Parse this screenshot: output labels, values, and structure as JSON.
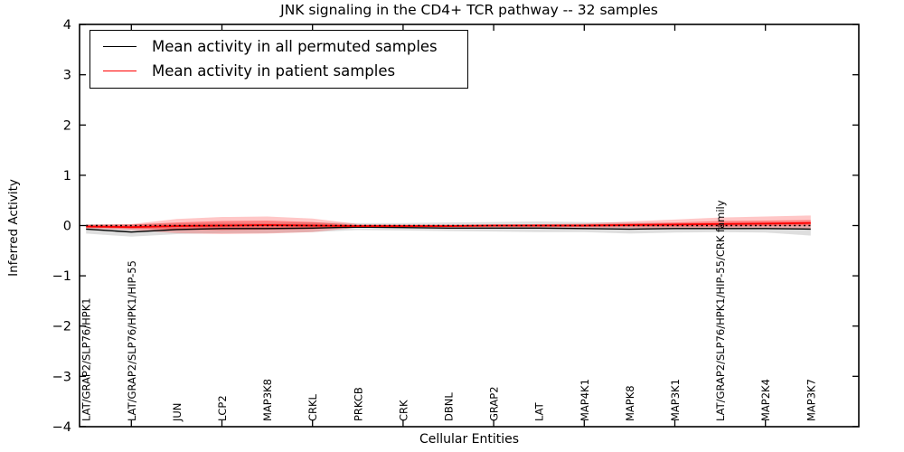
{
  "title": "JNK signaling in the CD4+ TCR pathway -- 32 samples",
  "legend": {
    "items": [
      {
        "label": "Mean activity in all permuted samples",
        "color": "#000000"
      },
      {
        "label": "Mean activity in patient samples",
        "color": "#ff0000"
      }
    ]
  },
  "axes": {
    "ylabel": "Inferred Activity",
    "xlabel": "Cellular Entities",
    "ylim": [
      -4,
      4
    ],
    "yticks": [
      4,
      3,
      2,
      1,
      0,
      -1,
      -2,
      -3,
      -4
    ],
    "ytick_labels": [
      "4",
      "3",
      "2",
      "1",
      "0",
      "−1",
      "−2",
      "−3",
      "−4"
    ]
  },
  "chart_data": {
    "type": "line",
    "title": "JNK signaling in the CD4+ TCR pathway -- 32 samples",
    "xlabel": "Cellular Entities",
    "ylabel": "Inferred Activity",
    "ylim": [
      -4,
      4
    ],
    "grid": false,
    "legend_position": "upper left",
    "categories": [
      "LAT/GRAP2/SLP76/HPK1",
      "LAT/GRAP2/SLP76/HPK1/HIP-55",
      "JUN",
      "LCP2",
      "MAP3K8",
      "CRKL",
      "PRKCB",
      "CRK",
      "DBNL",
      "GRAP2",
      "LAT",
      "MAP4K1",
      "MAPK8",
      "MAP3K1",
      "LAT/GRAP2/SLP76/HPK1/HIP-55/CRK family",
      "MAP2K4",
      "MAP3K7"
    ],
    "x_tick_indices": [
      1,
      3,
      5,
      7,
      9,
      11,
      13,
      15
    ],
    "series": [
      {
        "name": "Mean activity in all permuted samples",
        "color": "#000000",
        "style": "solid",
        "values": [
          -0.07,
          -0.13,
          -0.08,
          -0.06,
          -0.06,
          -0.05,
          -0.03,
          -0.04,
          -0.05,
          -0.05,
          -0.05,
          -0.06,
          -0.07,
          -0.06,
          -0.06,
          -0.06,
          -0.07
        ]
      },
      {
        "name": "Mean activity in patient samples",
        "color": "#ff0000",
        "style": "solid",
        "values": [
          -0.02,
          -0.03,
          -0.01,
          0.0,
          0.01,
          0.0,
          -0.01,
          -0.01,
          -0.01,
          0.0,
          0.0,
          0.0,
          0.01,
          0.02,
          0.03,
          0.04,
          0.05
        ]
      },
      {
        "name": "zero reference",
        "color": "#000000",
        "style": "dotted",
        "y": 0
      }
    ],
    "bands": [
      {
        "name": "permuted samples range",
        "fill": "rgba(0,0,0,0.13)",
        "lo": [
          -0.16,
          -0.22,
          -0.17,
          -0.15,
          -0.15,
          -0.13,
          -0.09,
          -0.1,
          -0.11,
          -0.12,
          -0.13,
          -0.13,
          -0.16,
          -0.14,
          -0.13,
          -0.14,
          -0.2
        ],
        "hi": [
          0.03,
          0.02,
          0.04,
          0.05,
          0.05,
          0.06,
          0.05,
          0.05,
          0.06,
          0.07,
          0.08,
          0.07,
          0.06,
          0.05,
          0.04,
          0.03,
          0.02
        ]
      },
      {
        "name": "patient samples range (outer)",
        "fill": "rgba(255,0,0,0.22)",
        "lo": [
          -0.06,
          -0.09,
          -0.15,
          -0.17,
          -0.16,
          -0.13,
          -0.04,
          -0.04,
          -0.04,
          -0.04,
          -0.04,
          -0.04,
          -0.05,
          -0.06,
          -0.07,
          -0.07,
          -0.07
        ],
        "hi": [
          0.02,
          0.03,
          0.13,
          0.17,
          0.18,
          0.14,
          0.03,
          0.02,
          0.02,
          0.02,
          0.03,
          0.04,
          0.08,
          0.12,
          0.16,
          0.18,
          0.2
        ]
      },
      {
        "name": "patient samples range (inner)",
        "fill": "rgba(255,0,0,0.35)",
        "lo": [
          -0.04,
          -0.06,
          -0.08,
          -0.09,
          -0.08,
          -0.07,
          -0.02,
          -0.02,
          -0.02,
          -0.02,
          -0.02,
          -0.02,
          -0.02,
          -0.02,
          -0.02,
          -0.01,
          0.0
        ],
        "hi": [
          0.01,
          0.02,
          0.06,
          0.09,
          0.1,
          0.07,
          0.01,
          0.01,
          0.01,
          0.01,
          0.02,
          0.02,
          0.04,
          0.06,
          0.09,
          0.1,
          0.11
        ]
      }
    ]
  }
}
